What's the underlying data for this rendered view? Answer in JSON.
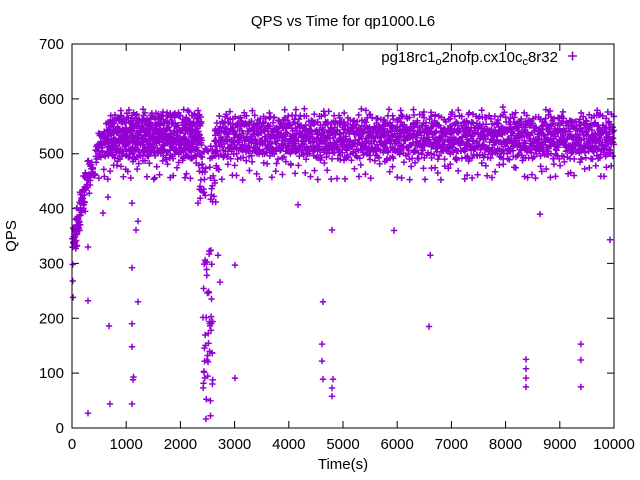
{
  "title": "QPS vs Time for qp1000.L6",
  "axes": {
    "xlabel": "Time(s)",
    "ylabel": "QPS",
    "xlim": [
      0,
      10000
    ],
    "ylim": [
      0,
      700
    ],
    "xticks": [
      0,
      1000,
      2000,
      3000,
      4000,
      5000,
      6000,
      7000,
      8000,
      9000,
      10000
    ],
    "yticks": [
      0,
      100,
      200,
      300,
      400,
      500,
      600,
      700
    ]
  },
  "legend": {
    "series_name": "pg18rc1_o2nofp.cx10c_c8r32",
    "parts": [
      "pg18rc1",
      "o",
      "2nofp.cx10c",
      "c",
      "8r32"
    ],
    "marker": "plus",
    "position": "top-right-inside"
  },
  "colors": {
    "marker": "#9400d3",
    "axis": "#000000",
    "background": "#ffffff"
  },
  "chart_data": {
    "type": "scatter",
    "title": "QPS vs Time for qp1000.L6",
    "xlabel": "Time(s)",
    "ylabel": "QPS",
    "xlim": [
      0,
      10000
    ],
    "ylim": [
      0,
      700
    ],
    "grid": false,
    "legend_position": "top-right-inside",
    "series": [
      {
        "name": "pg18rc1_o2nofp.cx10c_c8r32",
        "marker": "+",
        "color": "#9400d3",
        "description": "QPS over time; warm-up ramp 0-430s, steady band ~490-580 QPS, stall to ~15-320 QPS near t=2400-2600s, sporadic low-QPS outliers"
      }
    ],
    "dense_bands": [
      {
        "t0": 15,
        "t1": 95,
        "q0": 325,
        "q1": 368,
        "n": 26
      },
      {
        "t0": 70,
        "t1": 170,
        "q0": 360,
        "q1": 402,
        "n": 22
      },
      {
        "t0": 140,
        "t1": 250,
        "q0": 395,
        "q1": 437,
        "n": 20
      },
      {
        "t0": 210,
        "t1": 340,
        "q0": 428,
        "q1": 468,
        "n": 18
      },
      {
        "t0": 280,
        "t1": 430,
        "q0": 455,
        "q1": 492,
        "n": 20
      },
      {
        "t0": 430,
        "t1": 2395,
        "q0": 504,
        "q1": 524,
        "n": 160
      },
      {
        "t0": 490,
        "t1": 2395,
        "q0": 522,
        "q1": 542,
        "n": 150
      },
      {
        "t0": 430,
        "t1": 2395,
        "q0": 490,
        "q1": 506,
        "n": 80
      },
      {
        "t0": 620,
        "t1": 2395,
        "q0": 540,
        "q1": 558,
        "n": 120
      },
      {
        "t0": 650,
        "t1": 2390,
        "q0": 556,
        "q1": 572,
        "n": 80
      },
      {
        "t0": 900,
        "t1": 2360,
        "q0": 572,
        "q1": 582,
        "n": 20
      },
      {
        "t0": 440,
        "t1": 2390,
        "q0": 452,
        "q1": 492,
        "n": 40
      },
      {
        "t0": 2350,
        "t1": 2470,
        "q0": 395,
        "q1": 485,
        "n": 16
      },
      {
        "t0": 2415,
        "t1": 2600,
        "q0": 15,
        "q1": 325,
        "n": 48
      },
      {
        "t0": 2540,
        "t1": 2680,
        "q0": 400,
        "q1": 505,
        "n": 16
      },
      {
        "t0": 2400,
        "t1": 2620,
        "q0": 488,
        "q1": 515,
        "n": 12
      },
      {
        "t0": 2625,
        "t1": 10000,
        "q0": 504,
        "q1": 524,
        "n": 470
      },
      {
        "t0": 2625,
        "t1": 10000,
        "q0": 522,
        "q1": 542,
        "n": 450
      },
      {
        "t0": 2625,
        "t1": 10000,
        "q0": 490,
        "q1": 506,
        "n": 210
      },
      {
        "t0": 2625,
        "t1": 10000,
        "q0": 540,
        "q1": 558,
        "n": 360
      },
      {
        "t0": 2700,
        "t1": 10000,
        "q0": 556,
        "q1": 572,
        "n": 170
      },
      {
        "t0": 2750,
        "t1": 9950,
        "q0": 572,
        "q1": 582,
        "n": 30
      },
      {
        "t0": 2630,
        "t1": 9990,
        "q0": 452,
        "q1": 492,
        "n": 110
      }
    ],
    "outlier_points": [
      [
        5,
        345
      ],
      [
        10,
        330
      ],
      [
        12,
        298
      ],
      [
        15,
        268
      ],
      [
        20,
        238
      ],
      [
        295,
        330
      ],
      [
        295,
        232
      ],
      [
        295,
        27
      ],
      [
        572,
        392
      ],
      [
        664,
        421
      ],
      [
        683,
        186
      ],
      [
        700,
        44
      ],
      [
        1107,
        410
      ],
      [
        1218,
        377
      ],
      [
        1181,
        361
      ],
      [
        1107,
        292
      ],
      [
        1218,
        230
      ],
      [
        1107,
        190
      ],
      [
        1107,
        148
      ],
      [
        1135,
        93
      ],
      [
        1125,
        88
      ],
      [
        1107,
        44
      ],
      [
        2325,
        410
      ],
      [
        2694,
        315
      ],
      [
        2730,
        266
      ],
      [
        3007,
        297
      ],
      [
        3007,
        91
      ],
      [
        4169,
        407
      ],
      [
        4631,
        230
      ],
      [
        4613,
        153
      ],
      [
        4613,
        122
      ],
      [
        4631,
        89
      ],
      [
        4816,
        89
      ],
      [
        4797,
        73
      ],
      [
        4797,
        58
      ],
      [
        4797,
        361
      ],
      [
        5037,
        454
      ],
      [
        5941,
        360
      ],
      [
        6587,
        185
      ],
      [
        6610,
        315
      ],
      [
        7951,
        585
      ],
      [
        8376,
        125
      ],
      [
        8376,
        108
      ],
      [
        8376,
        91
      ],
      [
        8376,
        75
      ],
      [
        8634,
        390
      ],
      [
        9390,
        153
      ],
      [
        9390,
        124
      ],
      [
        9390,
        75
      ],
      [
        9926,
        343
      ]
    ]
  }
}
